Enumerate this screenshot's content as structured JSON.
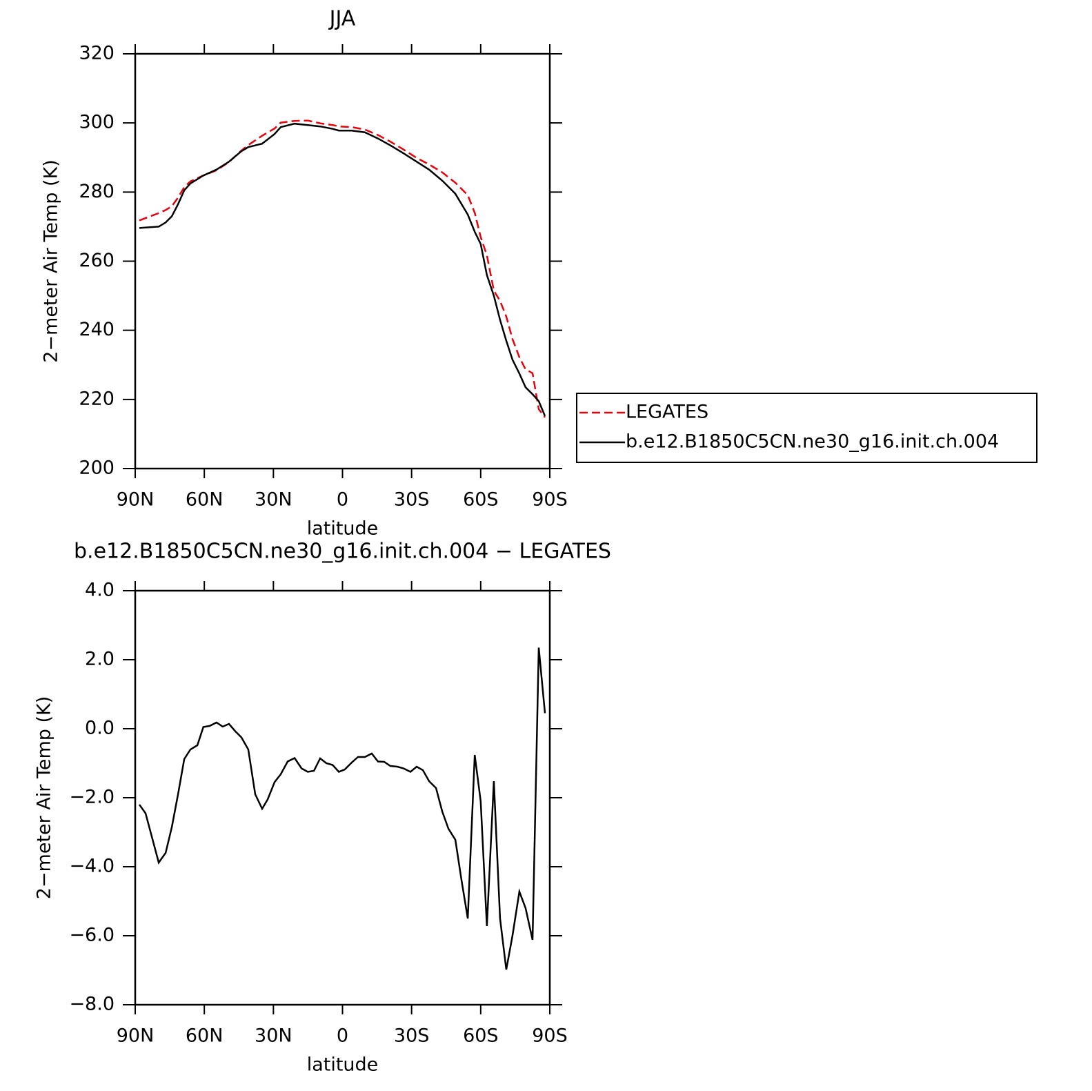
{
  "chart_data": [
    {
      "type": "line",
      "title": "JJA",
      "x_label": "latitude",
      "y_label": "2−meter Air Temp (K)",
      "x": [
        88.2,
        79.8,
        76.8,
        74.1,
        71.4,
        68.7,
        66.0,
        60.4,
        54.7,
        49.3,
        43.9,
        40.9,
        34.9,
        29.5,
        26.8,
        20.8,
        15.1,
        9.7,
        4.3,
        1.6,
        -4.0,
        -9.7,
        -15.4,
        -20.8,
        -26.5,
        -32.2,
        -37.6,
        -43.3,
        -49.0,
        -54.4,
        -57.4,
        -60.0,
        -62.7,
        -65.7,
        -68.4,
        -71.1,
        -73.8,
        -76.8,
        -79.5,
        -82.5,
        -85.2,
        -87.9
      ],
      "series": [
        {
          "name": "LEGATES",
          "color": "#e8000b",
          "line_style": "dashed",
          "values": [
            271.8,
            273.9,
            274.8,
            275.9,
            278.4,
            281.4,
            283.1,
            284.8,
            286.3,
            288.7,
            292.0,
            293.6,
            296.3,
            298.4,
            300.1,
            300.6,
            300.7,
            299.9,
            299.4,
            299.0,
            298.8,
            298.1,
            296.5,
            294.6,
            292.3,
            289.9,
            288.0,
            285.7,
            282.7,
            279.1,
            274.0,
            267.0,
            261.7,
            251.5,
            248.5,
            244.0,
            237.5,
            232.2,
            228.7,
            227.6,
            217.2,
            214.8
          ]
        },
        {
          "name": "b.e12.B1850C5CN.ne30_g16.init.ch.004",
          "color": "#000000",
          "line_style": "solid",
          "values": [
            269.6,
            270.0,
            271.2,
            273.0,
            276.5,
            280.5,
            282.5,
            284.8,
            286.5,
            288.8,
            291.8,
            293.0,
            294.0,
            296.8,
            298.8,
            299.8,
            299.4,
            299.0,
            298.3,
            297.8,
            297.8,
            297.3,
            295.5,
            293.5,
            291.2,
            288.8,
            286.5,
            283.3,
            279.5,
            273.5,
            268.5,
            265.0,
            256.0,
            250.0,
            243.0,
            237.0,
            231.5,
            227.5,
            223.5,
            221.5,
            219.5,
            215.2
          ]
        }
      ],
      "xlim": [
        90,
        -90
      ],
      "xticks": [
        {
          "value": 90,
          "label": "90N"
        },
        {
          "value": 60,
          "label": "60N"
        },
        {
          "value": 30,
          "label": "30N"
        },
        0,
        {
          "value": -30,
          "label": "30S"
        },
        {
          "value": -60,
          "label": "60S"
        },
        {
          "value": -90,
          "label": "90S"
        }
      ],
      "ylim": [
        200,
        320
      ],
      "yticks": [
        200,
        220,
        240,
        260,
        280,
        300,
        320
      ],
      "legend": "right"
    },
    {
      "type": "line",
      "title": "b.e12.B1850C5CN.ne30_g16.init.ch.004 − LEGATES",
      "x_label": "latitude",
      "y_label": "2−meter Air Temp (K)",
      "x": [
        88.2,
        85.5,
        79.8,
        76.8,
        74.1,
        71.4,
        68.7,
        66.0,
        63.0,
        60.4,
        57.7,
        54.7,
        52.0,
        49.3,
        46.6,
        43.9,
        40.9,
        37.9,
        34.9,
        32.5,
        29.5,
        26.8,
        23.8,
        20.8,
        17.8,
        15.1,
        12.4,
        9.7,
        7.0,
        4.3,
        1.6,
        -1.0,
        -4.0,
        -6.7,
        -9.7,
        -12.7,
        -15.4,
        -18.1,
        -20.8,
        -23.8,
        -26.5,
        -29.5,
        -32.2,
        -34.9,
        -37.6,
        -40.6,
        -43.3,
        -46.0,
        -49.0,
        -51.7,
        -54.4,
        -57.4,
        -60.0,
        -62.7,
        -65.7,
        -68.4,
        -71.1,
        -73.8,
        -76.8,
        -79.5,
        -82.5,
        -85.2,
        -87.9
      ],
      "series": [
        {
          "color": "#000000",
          "line_style": "solid",
          "values": [
            -2.2,
            -2.45,
            -3.88,
            -3.6,
            -2.85,
            -1.9,
            -0.88,
            -0.6,
            -0.48,
            0.05,
            0.08,
            0.18,
            0.06,
            0.14,
            -0.07,
            -0.25,
            -0.6,
            -1.9,
            -2.32,
            -2.05,
            -1.55,
            -1.32,
            -0.95,
            -0.85,
            -1.15,
            -1.25,
            -1.22,
            -0.86,
            -1.0,
            -1.05,
            -1.25,
            -1.18,
            -0.98,
            -0.82,
            -0.82,
            -0.72,
            -0.95,
            -0.96,
            -1.08,
            -1.1,
            -1.15,
            -1.25,
            -1.1,
            -1.2,
            -1.52,
            -1.72,
            -2.4,
            -2.9,
            -3.22,
            -4.4,
            -5.5,
            -0.76,
            -2.1,
            -5.72,
            -1.52,
            -5.5,
            -6.98,
            -6.0,
            -4.72,
            -5.2,
            -6.12,
            2.35,
            0.45
          ]
        }
      ],
      "xlim": [
        90,
        -90
      ],
      "xticks": [
        {
          "value": 90,
          "label": "90N"
        },
        {
          "value": 60,
          "label": "60N"
        },
        {
          "value": 30,
          "label": "30N"
        },
        0,
        {
          "value": -30,
          "label": "30S"
        },
        {
          "value": -60,
          "label": "60S"
        },
        {
          "value": -90,
          "label": "90S"
        }
      ],
      "ylim": [
        -8,
        4
      ],
      "yticks": [
        {
          "value": -8,
          "label": "−8.0"
        },
        {
          "value": -6,
          "label": "−6.0"
        },
        {
          "value": -4,
          "label": "−4.0"
        },
        {
          "value": -2,
          "label": "−2.0"
        },
        {
          "value": 0,
          "label": "0.0"
        },
        {
          "value": 2,
          "label": "2.0"
        },
        {
          "value": 4,
          "label": "4.0"
        }
      ]
    }
  ]
}
